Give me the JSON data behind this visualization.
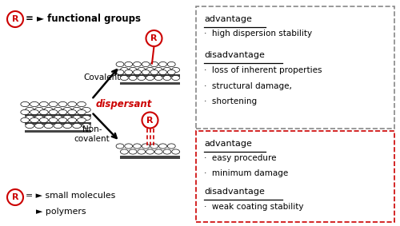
{
  "fig_width": 5.0,
  "fig_height": 2.83,
  "dpi": 100,
  "bg_color": "#ffffff",
  "red_color": "#cc0000",
  "black_color": "#000000",
  "gray_color": "#888888",
  "legend_R_functional": "= ► functional groups",
  "legend_R_small": "= ► small molecules",
  "legend_R_polymer": "► polymers",
  "covalent_label": "Covalent",
  "noncovalent_label1": "Non-",
  "noncovalent_label2": "covalent",
  "dispersant_label": "dispersant",
  "box1_title": "advantage",
  "box1_adv": "·  high dispersion stability",
  "box1_dis_title": "disadvantage",
  "box1_dis1": "·  loss of inherent properties",
  "box1_dis2": "·  structural damage,",
  "box1_dis3": "·  shortening",
  "box2_title": "advantage",
  "box2_adv1": "·  easy procedure",
  "box2_adv2": "·  minimum damage",
  "box2_dis_title": "disadvantage",
  "box2_dis1": "·  weak coating stability"
}
